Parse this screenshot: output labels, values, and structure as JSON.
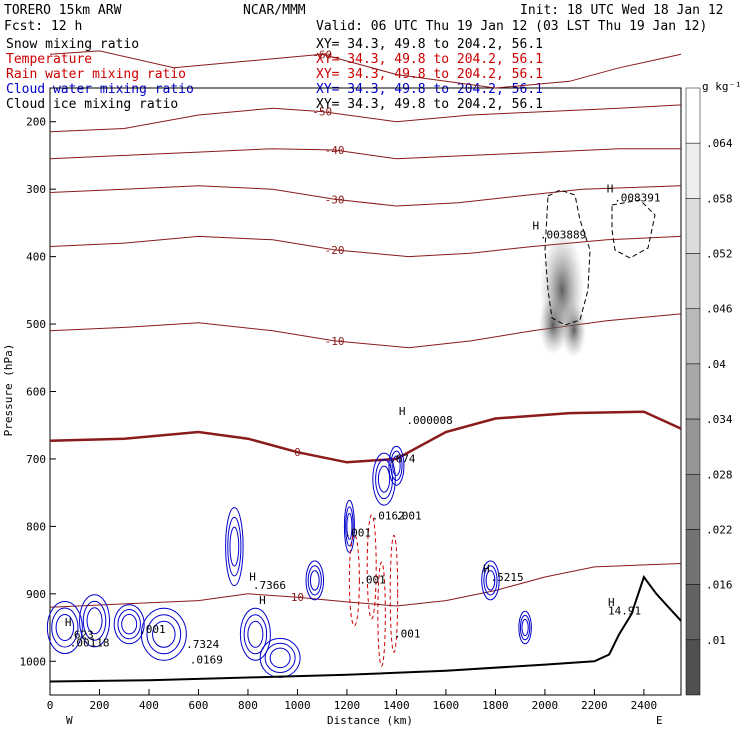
{
  "header": {
    "model": "TORERO  15km ARW",
    "org": "NCAR/MMM",
    "init": "Init: 18 UTC Wed 18 Jan 12",
    "fcst": "Fcst:   12 h",
    "valid": "Valid: 06 UTC Thu 19 Jan 12 (03 LST Thu 19 Jan 12)",
    "legend": [
      {
        "name": "Snow mixing ratio",
        "xy": "XY=  34.3, 49.8 to 204.2, 56.1",
        "color": "#000000"
      },
      {
        "name": "Temperature",
        "xy": "XY=  34.3, 49.8 to 204.2, 56.1",
        "color": "#cc0000"
      },
      {
        "name": "Rain water mixing ratio",
        "xy": "XY=  34.3, 49.8 to 204.2, 56.1",
        "color": "#cc0000"
      },
      {
        "name": "Cloud water mixing ratio",
        "xy": "XY=  34.3, 49.8 to 204.2, 56.1",
        "color": "#0000cc"
      },
      {
        "name": "Cloud ice mixing ratio",
        "xy": "XY=  34.3, 49.8 to 204.2, 56.1",
        "color": "#000000"
      }
    ]
  },
  "chart_data": {
    "type": "cross-section",
    "xlabel": "Distance (km)",
    "ylabel": "Pressure (hPa)",
    "xlim": [
      0,
      2550
    ],
    "ylim": [
      1050,
      150
    ],
    "x_ticks": [
      0,
      200,
      400,
      600,
      800,
      1000,
      1200,
      1400,
      1600,
      1800,
      2000,
      2200,
      2400
    ],
    "y_ticks": [
      200,
      300,
      400,
      500,
      600,
      700,
      800,
      900,
      1000
    ],
    "left_end_label": "W",
    "right_end_label": "E",
    "colorbar": {
      "unit": "g kg⁻¹",
      "ticks": [
        ".01",
        ".016",
        ".022",
        ".028",
        ".034",
        ".04",
        ".046",
        ".052",
        ".058",
        ".064"
      ]
    },
    "isotherms": [
      {
        "label": "-60",
        "points": [
          [
            0,
            100
          ],
          [
            200,
            95
          ],
          [
            500,
            120
          ],
          [
            800,
            110
          ],
          [
            1100,
            100
          ],
          [
            1400,
            130
          ],
          [
            1800,
            150
          ],
          [
            2100,
            140
          ],
          [
            2300,
            120
          ],
          [
            2550,
            100
          ]
        ]
      },
      {
        "label": "-50",
        "points": [
          [
            0,
            215
          ],
          [
            300,
            210
          ],
          [
            600,
            190
          ],
          [
            900,
            180
          ],
          [
            1100,
            185
          ],
          [
            1400,
            200
          ],
          [
            1700,
            190
          ],
          [
            2000,
            185
          ],
          [
            2300,
            180
          ],
          [
            2550,
            175
          ]
        ]
      },
      {
        "label": "-40",
        "points": [
          [
            0,
            255
          ],
          [
            300,
            250
          ],
          [
            600,
            245
          ],
          [
            900,
            240
          ],
          [
            1150,
            242
          ],
          [
            1400,
            255
          ],
          [
            1700,
            250
          ],
          [
            2000,
            245
          ],
          [
            2300,
            240
          ],
          [
            2550,
            240
          ]
        ]
      },
      {
        "label": "-30",
        "points": [
          [
            0,
            305
          ],
          [
            300,
            300
          ],
          [
            600,
            295
          ],
          [
            900,
            300
          ],
          [
            1150,
            315
          ],
          [
            1400,
            325
          ],
          [
            1650,
            320
          ],
          [
            1900,
            310
          ],
          [
            2150,
            300
          ],
          [
            2550,
            295
          ]
        ]
      },
      {
        "label": "-20",
        "points": [
          [
            0,
            385
          ],
          [
            300,
            380
          ],
          [
            600,
            370
          ],
          [
            900,
            375
          ],
          [
            1150,
            390
          ],
          [
            1450,
            400
          ],
          [
            1700,
            395
          ],
          [
            1950,
            385
          ],
          [
            2250,
            375
          ],
          [
            2550,
            370
          ]
        ]
      },
      {
        "label": "-10",
        "points": [
          [
            0,
            510
          ],
          [
            300,
            505
          ],
          [
            600,
            498
          ],
          [
            900,
            510
          ],
          [
            1150,
            525
          ],
          [
            1450,
            535
          ],
          [
            1700,
            525
          ],
          [
            1950,
            510
          ],
          [
            2250,
            495
          ],
          [
            2550,
            485
          ]
        ]
      },
      {
        "label": "0",
        "points": [
          [
            0,
            673
          ],
          [
            300,
            670
          ],
          [
            600,
            660
          ],
          [
            800,
            670
          ],
          [
            1000,
            690
          ],
          [
            1200,
            705
          ],
          [
            1400,
            700
          ],
          [
            1600,
            660
          ],
          [
            1800,
            640
          ],
          [
            2100,
            632
          ],
          [
            2400,
            630
          ],
          [
            2550,
            655
          ]
        ]
      },
      {
        "label": "10",
        "points": [
          [
            0,
            920
          ],
          [
            300,
            915
          ],
          [
            600,
            910
          ],
          [
            800,
            900
          ],
          [
            1000,
            905
          ],
          [
            1200,
            912
          ],
          [
            1400,
            918
          ],
          [
            1600,
            910
          ],
          [
            1800,
            895
          ],
          [
            2000,
            875
          ],
          [
            2200,
            860
          ],
          [
            2550,
            855
          ]
        ]
      }
    ],
    "terrain": [
      [
        0,
        1030
      ],
      [
        400,
        1028
      ],
      [
        800,
        1024
      ],
      [
        1200,
        1020
      ],
      [
        1600,
        1014
      ],
      [
        2000,
        1005
      ],
      [
        2200,
        1000
      ],
      [
        2260,
        990
      ],
      [
        2300,
        960
      ],
      [
        2350,
        930
      ],
      [
        2400,
        875
      ],
      [
        2450,
        900
      ],
      [
        2500,
        920
      ],
      [
        2550,
        940
      ]
    ],
    "annotations": [
      {
        "text": "H",
        "x": 1410,
        "y": 635
      },
      {
        "text": ".000008",
        "x": 1440,
        "y": 648
      },
      {
        "text": "H",
        "x": 1950,
        "y": 360
      },
      {
        "text": ".003889",
        "x": 1980,
        "y": 373
      },
      {
        "text": "H",
        "x": 2250,
        "y": 305
      },
      {
        "text": ".008391",
        "x": 2280,
        "y": 318
      },
      {
        "text": "H",
        "x": 805,
        "y": 880
      },
      {
        "text": ".7366",
        "x": 820,
        "y": 893
      },
      {
        "text": "H",
        "x": 1750,
        "y": 868
      },
      {
        "text": ".5215",
        "x": 1780,
        "y": 881
      },
      {
        "text": "H",
        "x": 2255,
        "y": 918
      },
      {
        "text": "14.91",
        "x": 2255,
        "y": 931
      },
      {
        "text": ".674",
        "x": 1370,
        "y": 705
      },
      {
        "text": ".0162",
        "x": 1300,
        "y": 790
      },
      {
        "text": ".001",
        "x": 1395,
        "y": 790
      },
      {
        "text": ".001",
        "x": 1190,
        "y": 815
      },
      {
        "text": ".001",
        "x": 1250,
        "y": 885
      },
      {
        "text": ".001",
        "x": 1390,
        "y": 965
      },
      {
        "text": ".7324",
        "x": 550,
        "y": 980
      },
      {
        "text": "H",
        "x": 845,
        "y": 915
      },
      {
        "text": ".001",
        "x": 360,
        "y": 958
      },
      {
        "text": ".00118",
        "x": 80,
        "y": 978
      },
      {
        "text": "H",
        "x": 60,
        "y": 948
      },
      {
        "text": ".623",
        "x": 70,
        "y": 966
      },
      {
        "text": ".0169",
        "x": 565,
        "y": 1003
      }
    ]
  }
}
